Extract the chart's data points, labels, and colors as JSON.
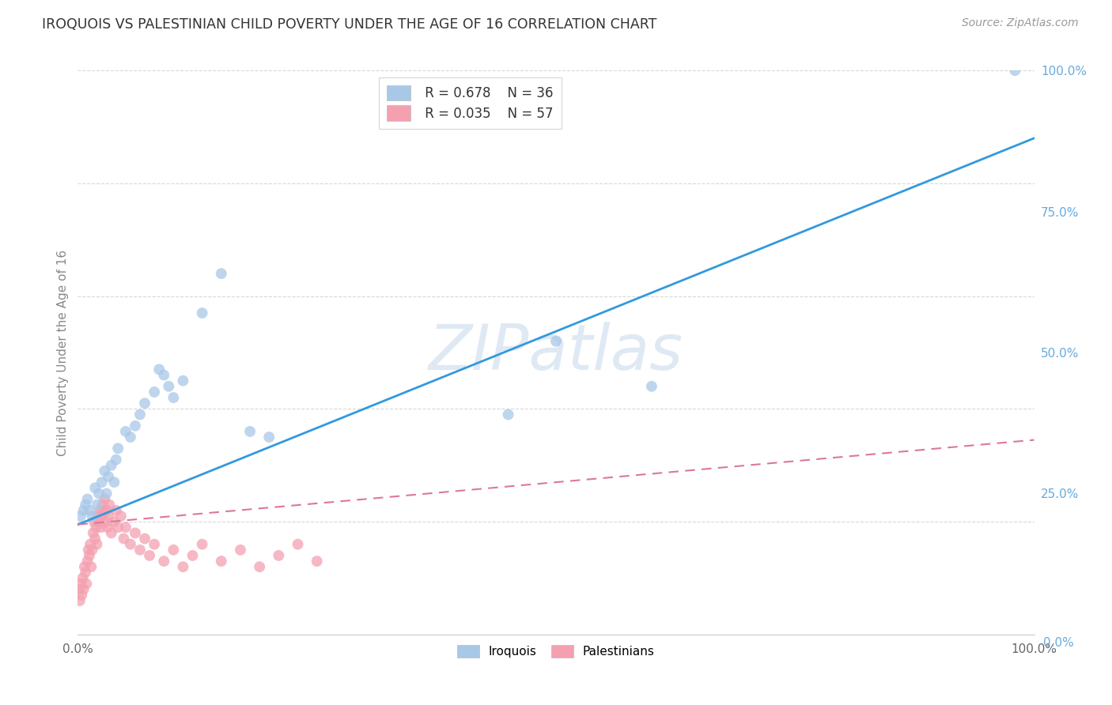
{
  "title": "IROQUOIS VS PALESTINIAN CHILD POVERTY UNDER THE AGE OF 16 CORRELATION CHART",
  "source": "Source: ZipAtlas.com",
  "ylabel": "Child Poverty Under the Age of 16",
  "xlim": [
    0,
    1
  ],
  "ylim": [
    0,
    1
  ],
  "watermark": "ZIPatlas",
  "legend_r1": "R = 0.678",
  "legend_n1": "N = 36",
  "legend_r2": "R = 0.035",
  "legend_n2": "N = 57",
  "iroquois_color": "#a8c8e8",
  "palestinians_color": "#f4a0b0",
  "trend_blue": "#3399dd",
  "trend_pink": "#dd7799",
  "background_color": "#ffffff",
  "grid_color": "#d8d8d8",
  "iroquois_x": [
    0.003,
    0.006,
    0.008,
    0.01,
    0.012,
    0.015,
    0.018,
    0.02,
    0.022,
    0.025,
    0.028,
    0.03,
    0.032,
    0.035,
    0.038,
    0.04,
    0.042,
    0.05,
    0.055,
    0.06,
    0.065,
    0.07,
    0.08,
    0.085,
    0.09,
    0.095,
    0.1,
    0.11,
    0.13,
    0.15,
    0.18,
    0.2,
    0.45,
    0.5,
    0.6,
    0.98
  ],
  "iroquois_y": [
    0.21,
    0.22,
    0.23,
    0.24,
    0.22,
    0.21,
    0.26,
    0.23,
    0.25,
    0.27,
    0.29,
    0.25,
    0.28,
    0.3,
    0.27,
    0.31,
    0.33,
    0.36,
    0.35,
    0.37,
    0.39,
    0.41,
    0.43,
    0.47,
    0.46,
    0.44,
    0.42,
    0.45,
    0.57,
    0.64,
    0.36,
    0.35,
    0.39,
    0.52,
    0.44,
    1.0
  ],
  "palestinians_x": [
    0.001,
    0.002,
    0.003,
    0.004,
    0.005,
    0.006,
    0.007,
    0.008,
    0.009,
    0.01,
    0.011,
    0.012,
    0.013,
    0.014,
    0.015,
    0.016,
    0.017,
    0.018,
    0.019,
    0.02,
    0.021,
    0.022,
    0.023,
    0.024,
    0.025,
    0.026,
    0.027,
    0.028,
    0.029,
    0.03,
    0.031,
    0.032,
    0.033,
    0.035,
    0.038,
    0.04,
    0.042,
    0.045,
    0.048,
    0.05,
    0.055,
    0.06,
    0.065,
    0.07,
    0.075,
    0.08,
    0.09,
    0.1,
    0.11,
    0.12,
    0.13,
    0.15,
    0.17,
    0.19,
    0.21,
    0.23,
    0.25
  ],
  "palestinians_y": [
    0.08,
    0.06,
    0.09,
    0.07,
    0.1,
    0.08,
    0.12,
    0.11,
    0.09,
    0.13,
    0.15,
    0.14,
    0.16,
    0.12,
    0.15,
    0.18,
    0.2,
    0.17,
    0.19,
    0.16,
    0.21,
    0.2,
    0.22,
    0.19,
    0.21,
    0.23,
    0.22,
    0.24,
    0.2,
    0.22,
    0.19,
    0.21,
    0.23,
    0.18,
    0.2,
    0.22,
    0.19,
    0.21,
    0.17,
    0.19,
    0.16,
    0.18,
    0.15,
    0.17,
    0.14,
    0.16,
    0.13,
    0.15,
    0.12,
    0.14,
    0.16,
    0.13,
    0.15,
    0.12,
    0.14,
    0.16,
    0.13
  ],
  "blue_trend_x0": 0.0,
  "blue_trend_y0": 0.195,
  "blue_trend_x1": 1.0,
  "blue_trend_y1": 0.88,
  "pink_trend_x0": 0.0,
  "pink_trend_y0": 0.195,
  "pink_trend_x1": 1.0,
  "pink_trend_y1": 0.345
}
